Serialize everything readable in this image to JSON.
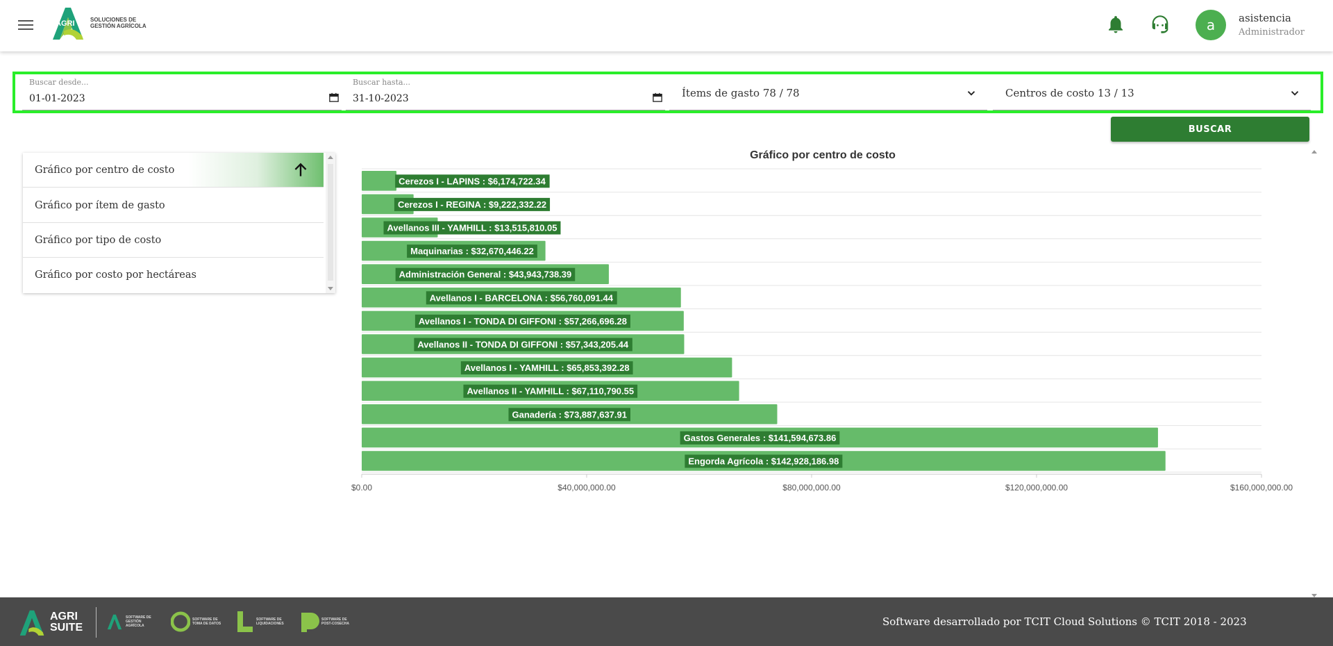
{
  "header": {
    "logo_word": "AGRI",
    "logo_tagline": "SOLUCIONES DE GESTIÓN AGRÍCOLA",
    "avatar_letter": "a",
    "user_name": "asistencia",
    "user_role": "Administrador"
  },
  "filters": {
    "from_label": "Buscar desde...",
    "from_value": "01-01-2023",
    "to_label": "Buscar hasta...",
    "to_value": "31-10-2023",
    "items_select": "Ítems de gasto 78 / 78",
    "centers_select": "Centros de costo 13 / 13",
    "search_button": "BUSCAR"
  },
  "side_menu": {
    "items": [
      {
        "label": "Gráfico por centro de costo"
      },
      {
        "label": "Gráfico por ítem de gasto"
      },
      {
        "label": "Gráfico por tipo de costo"
      },
      {
        "label": "Gráfico por costo por hectáreas"
      }
    ]
  },
  "chart_data": {
    "type": "bar",
    "orientation": "horizontal",
    "title": "Gráfico por centro de costo",
    "xlim": [
      0,
      160000000
    ],
    "x_ticks": [
      "$0.00",
      "$40,000,000.00",
      "$80,000,000.00",
      "$120,000,000.00",
      "$160,000,000.00"
    ],
    "categories": [
      "Cerezos I - LAPINS",
      "Cerezos I - REGINA",
      "Avellanos III - YAMHILL",
      "Maquinarias",
      "Administración General",
      "Avellanos I - BARCELONA",
      "Avellanos I - TONDA DI GIFFONI",
      "Avellanos II - TONDA DI GIFFONI",
      "Avellanos I - YAMHILL",
      "Avellanos II - YAMHILL",
      "Ganadería",
      "Gastos Generales",
      "Engorda Agrícola"
    ],
    "values": [
      6174722.34,
      9222332.22,
      13515810.05,
      32670446.22,
      43943738.39,
      56760091.44,
      57266696.28,
      57343205.44,
      65853392.28,
      67110790.55,
      73887637.91,
      141594673.86,
      142928186.98
    ],
    "labels": [
      "Cerezos I - LAPINS : $6,174,722.34",
      "Cerezos I - REGINA : $9,222,332.22",
      "Avellanos III - YAMHILL : $13,515,810.05",
      "Maquinarias : $32,670,446.22",
      "Administración General : $43,943,738.39",
      "Avellanos I - BARCELONA : $56,760,091.44",
      "Avellanos I - TONDA DI GIFFONI : $57,266,696.28",
      "Avellanos II - TONDA DI GIFFONI : $57,343,205.44",
      "Avellanos I - YAMHILL : $65,853,392.28",
      "Avellanos II - YAMHILL : $67,110,790.55",
      "Ganadería : $73,887,637.91",
      "Gastos Generales : $141,594,673.86",
      "Engorda Agrícola : $142,928,186.98"
    ],
    "bar_color": "#66bb6a",
    "label_bg": "#2e7d32"
  },
  "footer": {
    "brand_top": "AGRI",
    "brand_bottom": "SUITE",
    "products": [
      "SOFTWARE DE GESTIÓN AGRÍCOLA",
      "SOFTWARE DE TOMA DE DATOS",
      "SOFTWARE DE LIQUIDACIONES",
      "SOFTWARE DE POST-COSECHA"
    ],
    "copyright": "Software desarrollado por TCIT Cloud Solutions © TCIT 2018 - 2023"
  }
}
